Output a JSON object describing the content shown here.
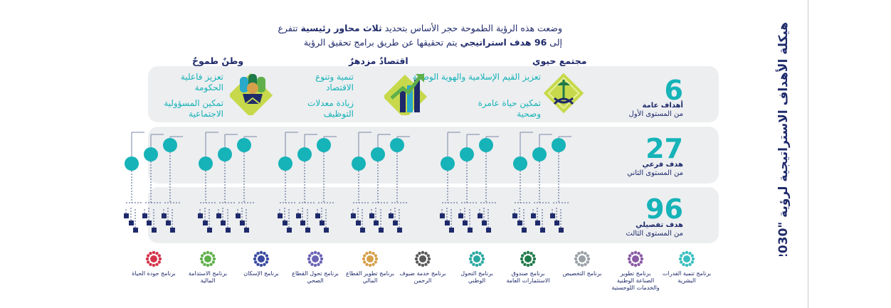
{
  "vertical_title": "هيكلة الأهداف الاستراتيجية لرؤية \"2030\"",
  "intro": {
    "line1_a": "وضعت هذه الرؤية الطموحة حجر الأساس بتحديد ",
    "line1_b": "ثلاث محاور رئيسية",
    "line1_c": " تتفرع",
    "line2_a": "إلى ",
    "line2_b": "96 هدف استراتيجي",
    "line2_c": " يتم تحقيقها عن طريق برامج تحقيق الرؤية"
  },
  "pillars": [
    {
      "title": "مجتمع حيوي",
      "icon": "saudi-emblem-icon",
      "goals": [
        "تعزيز القيم الإسلامية والهوية الوطنية",
        "تمكين حياة عامرة وصحية"
      ]
    },
    {
      "title": "اقتصادٌ مزدهرٌ",
      "icon": "growth-chart-icon",
      "goals": [
        "تنمية وتنوع الاقتصاد",
        "زيادة معدلات التوظيف"
      ]
    },
    {
      "title": "وطنٌ طموحٌ",
      "icon": "people-puzzle-icon",
      "goals": [
        "تعزيز فاعلية الحكومة",
        "تمكين المسؤولية الاجتماعية"
      ]
    }
  ],
  "levels": [
    {
      "count": "6",
      "name": "أهداف عامة",
      "level": "من المستوى الأول"
    },
    {
      "count": "27",
      "name": "هدف فرعي",
      "level": "من المستوى الثاني"
    },
    {
      "count": "96",
      "name": "هدف تفصيلي",
      "level": "من المستوى الثالث"
    }
  ],
  "programs": [
    {
      "label": "برنامج تنمية القدرات البشرية",
      "color": "#3bbfc0"
    },
    {
      "label": "برنامج تطوير الصناعة الوطنية والخدمات اللوجستية",
      "color": "#8a5aa6"
    },
    {
      "label": "برنامج التخصيص",
      "color": "#9aa0a6"
    },
    {
      "label": "برنامج صندوق الاستثمارات العامة",
      "color": "#1f7a4a"
    },
    {
      "label": "برنامج التحول الوطني",
      "color": "#2aa9a0"
    },
    {
      "label": "برنامج خدمة ضيوف الرحمن",
      "color": "#5a5a5a"
    },
    {
      "label": "برنامج تطوير القطاع المالي",
      "color": "#d6a04a"
    },
    {
      "label": "برنامج تحول القطاع الصحي",
      "color": "#6b63b5"
    },
    {
      "label": "برنامج الإسكان",
      "color": "#3a4aa0"
    },
    {
      "label": "برنامج الاستدامة المالية",
      "color": "#5fb04a"
    },
    {
      "label": "برنامج جودة الحياة",
      "color": "#d4344a"
    }
  ],
  "colors": {
    "teal": "#16b3b8",
    "navy": "#1f2a6b",
    "panel": "#eceef0"
  }
}
